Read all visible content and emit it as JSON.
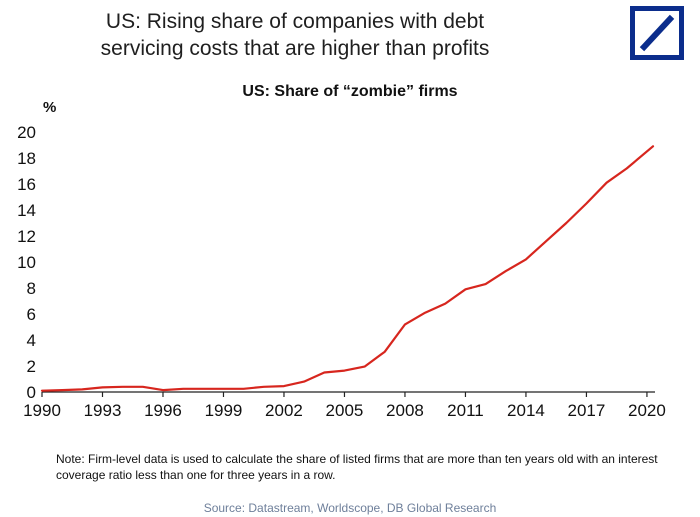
{
  "header": {
    "title_line1": "US: Rising share of companies with debt",
    "title_line2": "servicing costs that are higher than profits",
    "logo_icon": "deutsche-bank-logo-icon",
    "logo_color": "#0b2d8c"
  },
  "chart_data": {
    "type": "line",
    "title": "US: Share of “zombie” firms",
    "ylabel": "%",
    "xlabel": "",
    "ylim": [
      0,
      20
    ],
    "xlim": [
      1990,
      2020.4
    ],
    "y_ticks": [
      0,
      2,
      4,
      6,
      8,
      10,
      12,
      14,
      16,
      18,
      20
    ],
    "x_ticks": [
      1990,
      1993,
      1996,
      1999,
      2002,
      2005,
      2008,
      2011,
      2014,
      2017,
      2020
    ],
    "grid": false,
    "legend": "none",
    "series": [
      {
        "color": "#d7261e",
        "x": [
          1990,
          1991,
          1992,
          1993,
          1994,
          1995,
          1996,
          1997,
          1998,
          1999,
          2000,
          2001,
          2002,
          2003,
          2004,
          2005,
          2006,
          2007,
          2008,
          2009,
          2010,
          2011,
          2012,
          2013,
          2014,
          2015,
          2016,
          2017,
          2018,
          2019,
          2020.3
        ],
        "y": [
          0.1,
          0.15,
          0.2,
          0.35,
          0.4,
          0.4,
          0.15,
          0.25,
          0.25,
          0.25,
          0.25,
          0.4,
          0.45,
          0.8,
          1.5,
          1.65,
          1.95,
          3.1,
          5.2,
          6.1,
          6.8,
          7.9,
          8.3,
          9.3,
          10.2,
          11.6,
          13.0,
          14.5,
          16.1,
          17.2,
          18.9
        ]
      }
    ]
  },
  "footer": {
    "note": "Note: Firm-level data is used to calculate the share of listed firms that are more than ten years old with an interest coverage ratio less than one for three years in a row.",
    "source": "Source: Datastream, Worldscope, DB Global Research"
  }
}
